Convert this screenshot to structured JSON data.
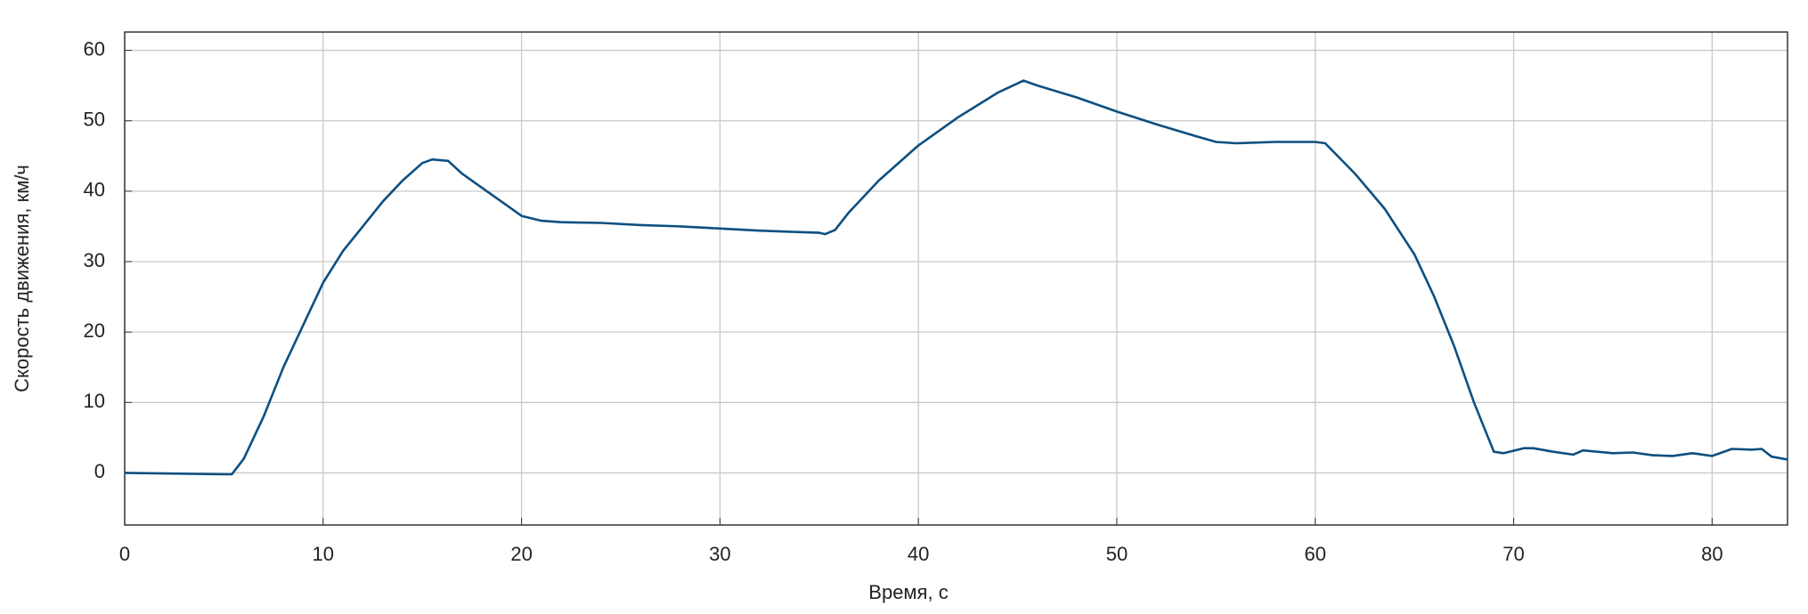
{
  "chart_data": {
    "type": "line",
    "x_label": "Время, с",
    "y_label": "Скорость движения, км/ч",
    "x": [
      0,
      5,
      5.4,
      6,
      7,
      8,
      9,
      10,
      11,
      12,
      13,
      14,
      15,
      15.5,
      16.3,
      17,
      18,
      19,
      20,
      21,
      22,
      24,
      26,
      28,
      30,
      32,
      34,
      35,
      35.3,
      35.8,
      36.5,
      38,
      40,
      42,
      44,
      45.3,
      46,
      48,
      50,
      52,
      54,
      55,
      56,
      58,
      60,
      60.5,
      62,
      63.5,
      65,
      66,
      67,
      68,
      69,
      69.5,
      70.5,
      71,
      72,
      73,
      73.5,
      75,
      76,
      77,
      78,
      79,
      80,
      81,
      82,
      82.5,
      83,
      83.8
    ],
    "values": [
      0,
      -0.2,
      -0.2,
      2,
      8,
      15,
      21,
      27,
      31.5,
      35,
      38.5,
      41.5,
      44,
      44.5,
      44.3,
      42.5,
      40.5,
      38.5,
      36.5,
      35.8,
      35.6,
      35.5,
      35.2,
      35,
      34.7,
      34.4,
      34.2,
      34.1,
      33.9,
      34.5,
      37,
      41.5,
      46.5,
      50.5,
      54,
      55.7,
      55,
      53.3,
      51.3,
      49.5,
      47.8,
      47,
      46.8,
      47,
      47,
      46.8,
      42.5,
      37.5,
      31,
      25,
      18,
      10,
      3,
      2.8,
      3.5,
      3.5,
      3,
      2.6,
      3.2,
      2.8,
      2.9,
      2.5,
      2.4,
      2.8,
      2.4,
      3.4,
      3.3,
      3.4,
      2.3,
      1.9
    ],
    "color": "#0d4f80",
    "xlim": [
      0,
      83.8
    ],
    "ylim": [
      -7.4,
      62.6
    ],
    "xticks": [
      0,
      10,
      20,
      30,
      40,
      50,
      60,
      70,
      80
    ],
    "yticks": [
      0,
      10,
      20,
      30,
      40,
      50,
      60
    ],
    "grid": true
  }
}
